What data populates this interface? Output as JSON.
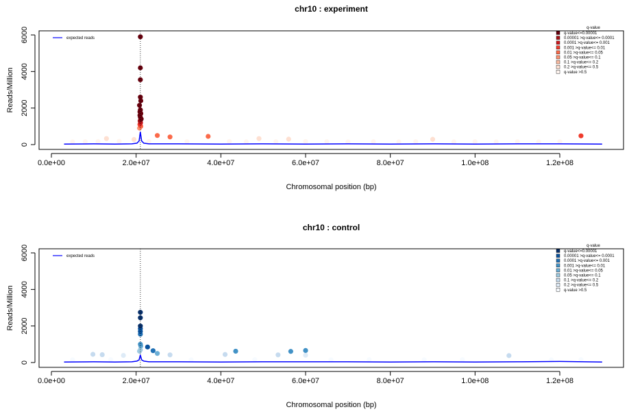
{
  "chart_data": [
    {
      "type": "scatter",
      "title": "chr10 : experiment",
      "xlabel": "Chromosomal position (bp)",
      "ylabel": "Reads/Million",
      "xlim": [
        0,
        130000000
      ],
      "ylim": [
        0,
        6000
      ],
      "x_ticks": [
        0,
        20000000,
        40000000,
        60000000,
        80000000,
        100000000,
        120000000
      ],
      "x_tick_labels": [
        "0.0e+00",
        "2.0e+07",
        "4.0e+07",
        "6.0e+07",
        "8.0e+07",
        "1.0e+08",
        "1.2e+08"
      ],
      "y_ticks": [
        0,
        2000,
        4000,
        6000
      ],
      "y_tick_labels": [
        "0",
        "2000",
        "4000",
        "6000"
      ],
      "vline_x": 21000000,
      "line_legend": {
        "label": "expected reads",
        "color": "#0000ff"
      },
      "legend_title": "q-value",
      "legend_position": "top-right",
      "bins": [
        {
          "label": "q-value<=0.00001",
          "color": "#67000d"
        },
        {
          "label": "0.00001 >q-value<= 0.0001",
          "color": "#a50f15"
        },
        {
          "label": "0.0001 >q-value<= 0.001",
          "color": "#cb181d"
        },
        {
          "label": "0.001 >q-value<= 0.01",
          "color": "#ef3b2c"
        },
        {
          "label": "0.01 >q-value<= 0.05",
          "color": "#fb6a4a"
        },
        {
          "label": "0.05 >q-value<= 0.1",
          "color": "#fc9272"
        },
        {
          "label": "0.1 >q-value<= 0.2",
          "color": "#fcbba1"
        },
        {
          "label": "0.2 >q-value<= 0.5",
          "color": "#fee0d2"
        },
        {
          "label": "q-value >0.5",
          "color": "#fff5f0"
        }
      ],
      "expected_line": {
        "x": [
          3000000,
          10000000,
          15000000,
          19000000,
          20200000,
          20700000,
          21000000,
          21300000,
          21800000,
          23000000,
          30000000,
          40000000,
          50000000,
          60000000,
          70000000,
          80000000,
          90000000,
          100000000,
          110000000,
          120000000,
          130000000
        ],
        "y": [
          30,
          40,
          30,
          40,
          80,
          200,
          700,
          200,
          80,
          40,
          40,
          30,
          40,
          30,
          40,
          30,
          40,
          30,
          40,
          40,
          30
        ]
      },
      "points": [
        {
          "x": 21000000,
          "y": 5900,
          "bin": 0
        },
        {
          "x": 21000000,
          "y": 4200,
          "bin": 0
        },
        {
          "x": 21000000,
          "y": 3550,
          "bin": 0
        },
        {
          "x": 21000000,
          "y": 2600,
          "bin": 0
        },
        {
          "x": 21100000,
          "y": 2400,
          "bin": 0
        },
        {
          "x": 20800000,
          "y": 2150,
          "bin": 0
        },
        {
          "x": 21000000,
          "y": 1900,
          "bin": 0
        },
        {
          "x": 20900000,
          "y": 1800,
          "bin": 0
        },
        {
          "x": 21100000,
          "y": 1700,
          "bin": 0
        },
        {
          "x": 20900000,
          "y": 1600,
          "bin": 0
        },
        {
          "x": 21000000,
          "y": 1500,
          "bin": 0
        },
        {
          "x": 21200000,
          "y": 1400,
          "bin": 0
        },
        {
          "x": 20950000,
          "y": 1300,
          "bin": 1
        },
        {
          "x": 21050000,
          "y": 1200,
          "bin": 2
        },
        {
          "x": 20900000,
          "y": 1100,
          "bin": 3
        },
        {
          "x": 21100000,
          "y": 1000,
          "bin": 4
        },
        {
          "x": 20800000,
          "y": 900,
          "bin": 5
        },
        {
          "x": 25000000,
          "y": 500,
          "bin": 4
        },
        {
          "x": 28000000,
          "y": 420,
          "bin": 4
        },
        {
          "x": 37000000,
          "y": 450,
          "bin": 4
        },
        {
          "x": 125000000,
          "y": 480,
          "bin": 3
        },
        {
          "x": 13000000,
          "y": 330,
          "bin": 7
        },
        {
          "x": 49000000,
          "y": 330,
          "bin": 7
        },
        {
          "x": 56000000,
          "y": 300,
          "bin": 7
        },
        {
          "x": 90000000,
          "y": 290,
          "bin": 7
        },
        {
          "x": 19500000,
          "y": 280,
          "bin": 7
        },
        {
          "x": 5000000,
          "y": 150,
          "bin": 8
        },
        {
          "x": 8000000,
          "y": 160,
          "bin": 8
        },
        {
          "x": 11000000,
          "y": 170,
          "bin": 8
        },
        {
          "x": 16000000,
          "y": 180,
          "bin": 8
        },
        {
          "x": 23000000,
          "y": 170,
          "bin": 8
        },
        {
          "x": 32000000,
          "y": 160,
          "bin": 8
        },
        {
          "x": 42000000,
          "y": 170,
          "bin": 8
        },
        {
          "x": 46000000,
          "y": 150,
          "bin": 8
        },
        {
          "x": 53000000,
          "y": 160,
          "bin": 8
        },
        {
          "x": 60000000,
          "y": 170,
          "bin": 8
        },
        {
          "x": 65000000,
          "y": 160,
          "bin": 8
        },
        {
          "x": 70000000,
          "y": 150,
          "bin": 8
        },
        {
          "x": 76000000,
          "y": 160,
          "bin": 8
        },
        {
          "x": 82000000,
          "y": 150,
          "bin": 8
        },
        {
          "x": 86000000,
          "y": 160,
          "bin": 8
        },
        {
          "x": 95000000,
          "y": 150,
          "bin": 8
        },
        {
          "x": 100000000,
          "y": 160,
          "bin": 8
        },
        {
          "x": 105000000,
          "y": 150,
          "bin": 8
        },
        {
          "x": 110000000,
          "y": 160,
          "bin": 8
        },
        {
          "x": 115000000,
          "y": 150,
          "bin": 8
        },
        {
          "x": 120000000,
          "y": 160,
          "bin": 8
        }
      ]
    },
    {
      "type": "scatter",
      "title": "chr10 : control",
      "xlabel": "Chromosomal position (bp)",
      "ylabel": "Reads/Million",
      "xlim": [
        0,
        130000000
      ],
      "ylim": [
        0,
        6000
      ],
      "x_ticks": [
        0,
        20000000,
        40000000,
        60000000,
        80000000,
        100000000,
        120000000
      ],
      "x_tick_labels": [
        "0.0e+00",
        "2.0e+07",
        "4.0e+07",
        "6.0e+07",
        "8.0e+07",
        "1.0e+08",
        "1.2e+08"
      ],
      "y_ticks": [
        0,
        2000,
        4000,
        6000
      ],
      "y_tick_labels": [
        "0",
        "2000",
        "4000",
        "6000"
      ],
      "vline_x": 21000000,
      "line_legend": {
        "label": "expected reads",
        "color": "#0000ff"
      },
      "legend_title": "q-value",
      "legend_position": "top-right",
      "bins": [
        {
          "label": "q-value<=0.00001",
          "color": "#08306b"
        },
        {
          "label": "0.00001 >q-value<= 0.0001",
          "color": "#08519c"
        },
        {
          "label": "0.0001 >q-value<= 0.001",
          "color": "#2171b5"
        },
        {
          "label": "0.001 >q-value<= 0.01",
          "color": "#4292c6"
        },
        {
          "label": "0.01 >q-value<= 0.05",
          "color": "#6baed6"
        },
        {
          "label": "0.05 >q-value<= 0.1",
          "color": "#9ecae1"
        },
        {
          "label": "0.1 >q-value<= 0.2",
          "color": "#c6dbef"
        },
        {
          "label": "0.2 >q-value<= 0.5",
          "color": "#deebf7"
        },
        {
          "label": "q-value >0.5",
          "color": "#f7fbff"
        }
      ],
      "expected_line": {
        "x": [
          3000000,
          10000000,
          15000000,
          19000000,
          20200000,
          20700000,
          21000000,
          21300000,
          21800000,
          23000000,
          30000000,
          40000000,
          50000000,
          60000000,
          70000000,
          80000000,
          90000000,
          100000000,
          110000000,
          120000000,
          130000000
        ],
        "y": [
          30,
          40,
          30,
          40,
          80,
          150,
          420,
          150,
          80,
          40,
          40,
          30,
          40,
          40,
          40,
          30,
          40,
          30,
          40,
          60,
          30
        ]
      },
      "points": [
        {
          "x": 21000000,
          "y": 2750,
          "bin": 0
        },
        {
          "x": 21000000,
          "y": 2450,
          "bin": 0
        },
        {
          "x": 21000000,
          "y": 2000,
          "bin": 0
        },
        {
          "x": 21000000,
          "y": 1850,
          "bin": 1
        },
        {
          "x": 21000000,
          "y": 1700,
          "bin": 1
        },
        {
          "x": 21000000,
          "y": 1550,
          "bin": 2
        },
        {
          "x": 21000000,
          "y": 1000,
          "bin": 3
        },
        {
          "x": 21100000,
          "y": 900,
          "bin": 4
        },
        {
          "x": 22700000,
          "y": 850,
          "bin": 1
        },
        {
          "x": 24000000,
          "y": 650,
          "bin": 2
        },
        {
          "x": 21000000,
          "y": 700,
          "bin": 5
        },
        {
          "x": 20800000,
          "y": 620,
          "bin": 5
        },
        {
          "x": 25000000,
          "y": 500,
          "bin": 4
        },
        {
          "x": 43500000,
          "y": 620,
          "bin": 3
        },
        {
          "x": 56500000,
          "y": 610,
          "bin": 3
        },
        {
          "x": 60000000,
          "y": 660,
          "bin": 3
        },
        {
          "x": 9800000,
          "y": 450,
          "bin": 6
        },
        {
          "x": 12000000,
          "y": 430,
          "bin": 6
        },
        {
          "x": 17000000,
          "y": 390,
          "bin": 7
        },
        {
          "x": 28000000,
          "y": 420,
          "bin": 6
        },
        {
          "x": 41000000,
          "y": 440,
          "bin": 6
        },
        {
          "x": 53500000,
          "y": 420,
          "bin": 6
        },
        {
          "x": 60000000,
          "y": 400,
          "bin": 7
        },
        {
          "x": 108000000,
          "y": 380,
          "bin": 6
        },
        {
          "x": 5000000,
          "y": 150,
          "bin": 8
        },
        {
          "x": 14000000,
          "y": 160,
          "bin": 8
        },
        {
          "x": 33000000,
          "y": 150,
          "bin": 8
        },
        {
          "x": 48000000,
          "y": 160,
          "bin": 8
        },
        {
          "x": 66000000,
          "y": 150,
          "bin": 8
        },
        {
          "x": 75000000,
          "y": 160,
          "bin": 8
        },
        {
          "x": 88000000,
          "y": 150,
          "bin": 8
        },
        {
          "x": 97000000,
          "y": 160,
          "bin": 8
        },
        {
          "x": 118000000,
          "y": 150,
          "bin": 8
        },
        {
          "x": 125000000,
          "y": 160,
          "bin": 8
        }
      ]
    }
  ]
}
